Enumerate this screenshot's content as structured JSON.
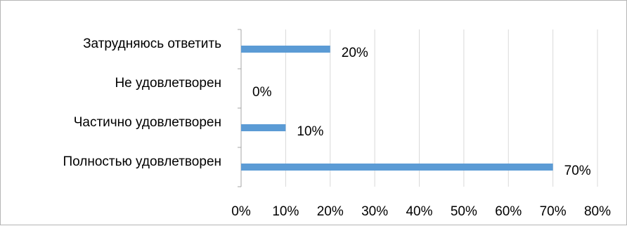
{
  "chart_data": {
    "type": "bar",
    "orientation": "horizontal",
    "categories": [
      "Полностью удовлетворен",
      "Частично удовлетворен",
      "Не удовлетворен",
      "Затрудняюсь ответить"
    ],
    "values": [
      70,
      10,
      0,
      20
    ],
    "data_labels": [
      "70%",
      "10%",
      "0%",
      "20%"
    ],
    "x_ticks": [
      0,
      10,
      20,
      30,
      40,
      50,
      60,
      70,
      80
    ],
    "x_tick_labels": [
      "0%",
      "10%",
      "20%",
      "30%",
      "40%",
      "50%",
      "60%",
      "70%",
      "80%"
    ],
    "xlim": [
      0,
      80
    ],
    "unit": "%",
    "grid": "vertical",
    "legend": "none",
    "title": "",
    "xlabel": "",
    "ylabel": "",
    "bar_color": "#5b9bd5"
  }
}
